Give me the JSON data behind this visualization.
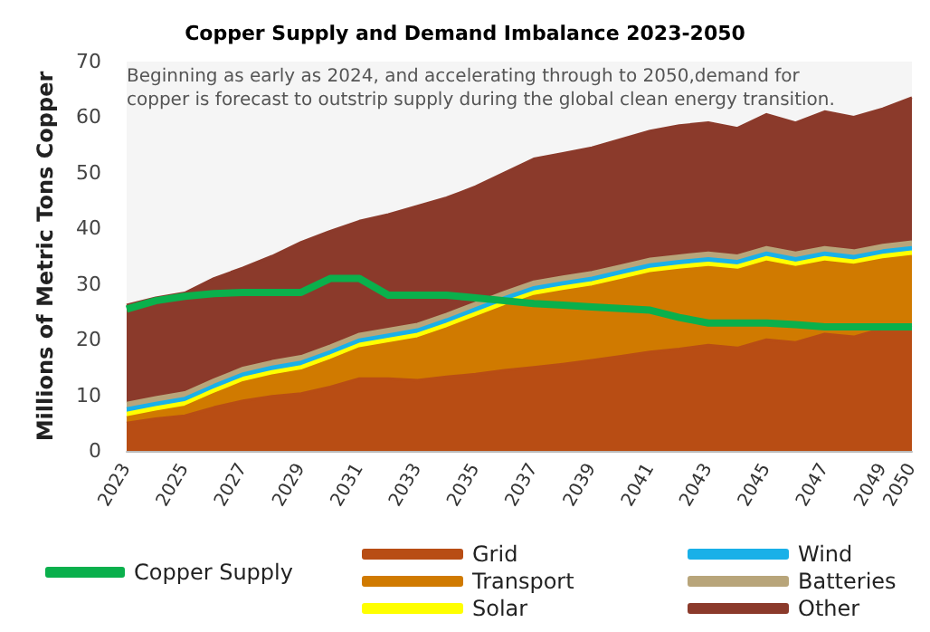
{
  "chart_data": {
    "type": "area",
    "title": "Copper Supply and Demand Imbalance 2023-2050",
    "ylabel": "Millions of Metric Tons Copper",
    "annotations": [
      "Beginning as early as 2024, and accelerating through to 2050,demand for copper is forecast to outstrip supply during the global clean energy transition."
    ],
    "categories": [
      "2023",
      null,
      "2025",
      null,
      "2027",
      null,
      "2029",
      null,
      "2031",
      null,
      "2033",
      null,
      "2035",
      null,
      "2037",
      null,
      "2039",
      null,
      "2041",
      null,
      "2043",
      null,
      "2045",
      null,
      "2047",
      null,
      "2049",
      "2050"
    ],
    "stacked": true,
    "ylim": [
      0,
      70
    ],
    "yticks": [
      0,
      10,
      20,
      30,
      40,
      50,
      60,
      70
    ],
    "grid": false,
    "legend": "bottom",
    "marker": "none",
    "line_style": "solid",
    "series": [
      {
        "name": "Grid",
        "color": "#b84d14",
        "values": [
          5,
          5.8,
          6.3,
          7.8,
          9,
          9.8,
          10.3,
          11.5,
          13,
          13,
          12.7,
          13.3,
          13.8,
          14.5,
          15,
          15.6,
          16.3,
          17,
          17.8,
          18.3,
          19,
          18.5,
          20,
          19.5,
          21,
          20.5,
          22,
          22.6
        ]
      },
      {
        "name": "Transport",
        "color": "#d07a00",
        "values": [
          1,
          1.2,
          1.6,
          2.4,
          3.3,
          3.7,
          4.1,
          4.8,
          5.4,
          6.3,
          7.5,
          8.7,
          10.2,
          11.5,
          12.8,
          13.1,
          13.2,
          13.7,
          14.1,
          14.2,
          14,
          14,
          14,
          13.5,
          13,
          12.9,
          12.4,
          12.4
        ]
      },
      {
        "name": "Solar",
        "color": "#ffff00",
        "values": [
          0.8,
          0.8,
          0.8,
          0.8,
          0.8,
          0.8,
          0.8,
          0.8,
          0.8,
          0.8,
          0.8,
          0.8,
          0.8,
          0.8,
          0.8,
          0.8,
          0.8,
          0.8,
          0.8,
          0.8,
          0.8,
          0.8,
          0.8,
          0.8,
          0.8,
          0.8,
          0.8,
          0.8
        ]
      },
      {
        "name": "Wind",
        "color": "#19b0e8",
        "values": [
          0.8,
          0.8,
          0.8,
          0.8,
          0.8,
          0.8,
          0.8,
          0.8,
          0.8,
          0.8,
          0.8,
          0.8,
          0.8,
          0.8,
          0.8,
          0.8,
          0.8,
          0.8,
          0.8,
          0.8,
          0.8,
          0.8,
          0.8,
          0.8,
          0.8,
          0.8,
          0.8,
          0.8
        ]
      },
      {
        "name": "Batteries",
        "color": "#b8a57a",
        "values": [
          1,
          1,
          1,
          1,
          1,
          1,
          1,
          1,
          1,
          1,
          1,
          1,
          1,
          1,
          1,
          1,
          1,
          1,
          1,
          1,
          1,
          1,
          1,
          1,
          1,
          1,
          1,
          1
        ]
      },
      {
        "name": "Other",
        "color": "#8b3a2b",
        "values": [
          17.6,
          17.9,
          17.9,
          18.2,
          18,
          18.9,
          20.5,
          20.6,
          20.3,
          20.6,
          21.2,
          20.9,
          20.9,
          21.4,
          22.1,
          22.2,
          22.4,
          22.7,
          23,
          23.4,
          23.4,
          22.9,
          23.9,
          23.4,
          24.4,
          24,
          24.5,
          25.9
        ]
      },
      {
        "name": "Copper Supply",
        "type": "line",
        "color": "#0ab04c",
        "values": [
          25.5,
          27,
          27.8,
          28.3,
          28.5,
          28.5,
          28.5,
          31,
          31,
          28,
          28,
          28,
          27.5,
          27,
          26.5,
          26.2,
          25.9,
          25.6,
          25.3,
          24,
          23,
          23,
          23,
          22.7,
          22.3,
          22.3,
          22.3,
          22.3
        ]
      }
    ]
  }
}
